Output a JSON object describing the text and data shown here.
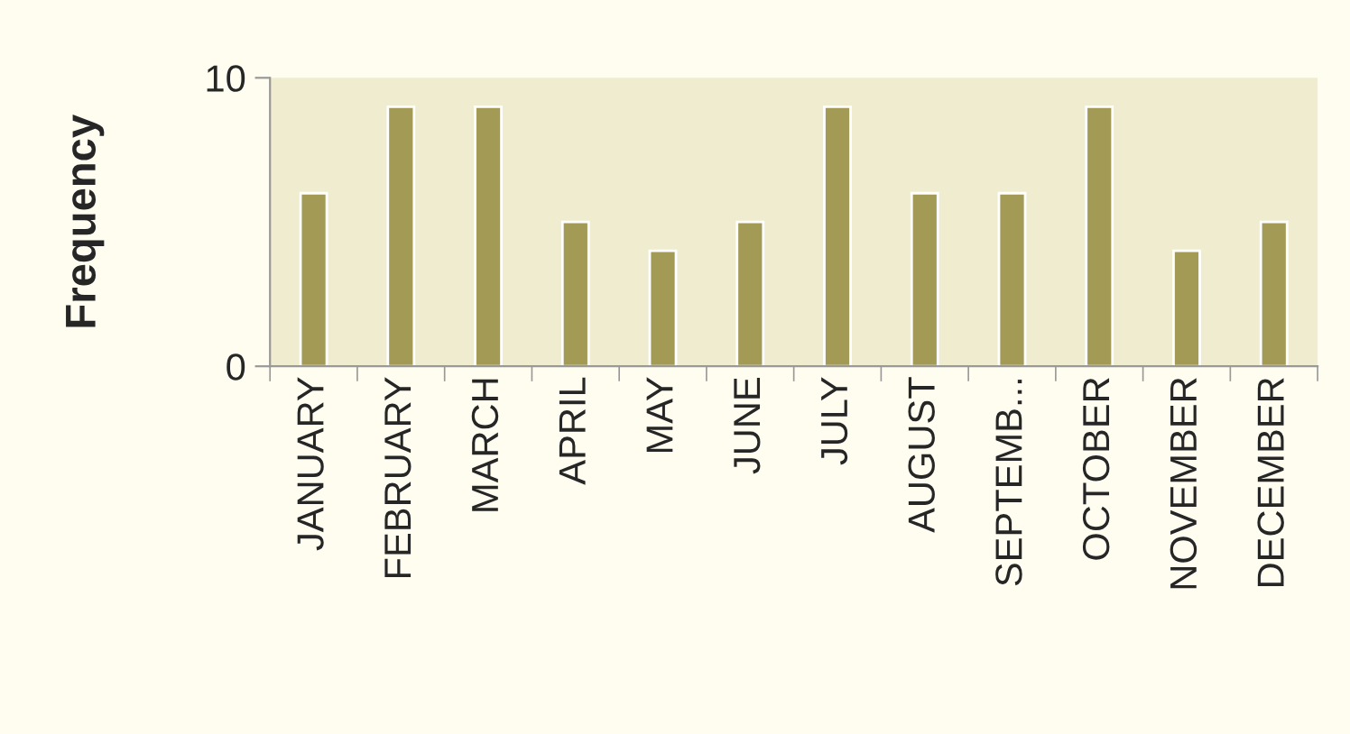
{
  "chart_data": {
    "type": "bar",
    "ylabel": "Frequency",
    "categories": [
      "JANUARY",
      "FEBRUARY",
      "MARCH",
      "APRIL",
      "MAY",
      "JUNE",
      "JULY",
      "AUGUST",
      "SEPTEMB...",
      "OCTOBER",
      "NOVEMBER",
      "DECEMBER"
    ],
    "series": [
      {
        "color": "#a39a55",
        "values": [
          6,
          9,
          9,
          5,
          4,
          5,
          9,
          6,
          6,
          9,
          4,
          5
        ]
      }
    ],
    "ylim": [
      0,
      10
    ],
    "yticks": [
      0,
      10
    ],
    "grid": false,
    "legend": false
  }
}
